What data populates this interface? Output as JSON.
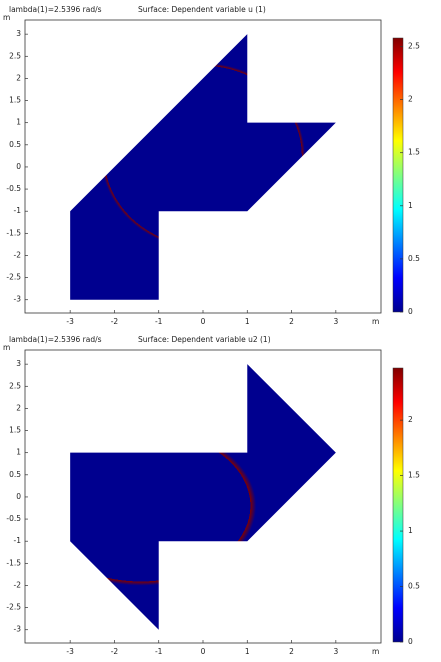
{
  "chart_data": [
    {
      "type": "surface",
      "title": "lambda(1)=2.5396 rad/s",
      "subtitle": "Surface: Dependent variable u (1)",
      "xlabel": "m",
      "ylabel": "m",
      "xlim": [
        -4.02,
        4.02
      ],
      "ylim": [
        -3.3,
        3.32
      ],
      "xticks": [
        -3,
        -2,
        -1,
        0,
        1,
        2,
        3
      ],
      "yticks": [
        -3,
        -2.5,
        -2,
        -1.5,
        -1,
        -0.5,
        0,
        0.5,
        1,
        1.5,
        2,
        2.5,
        3
      ],
      "colormap": "jet",
      "clim": [
        0,
        2.58
      ],
      "cticks": [
        0,
        0.5,
        1,
        1.5,
        2,
        2.5
      ]
    },
    {
      "type": "surface",
      "title": "lambda(1)=2.5396 rad/s",
      "subtitle": "Surface: Dependent variable u2 (1)",
      "xlabel": "m",
      "ylabel": "m",
      "xlim": [
        -4.02,
        4.02
      ],
      "ylim": [
        -3.3,
        3.32
      ],
      "xticks": [
        -3,
        -2,
        -1,
        0,
        1,
        2,
        3
      ],
      "yticks": [
        -3,
        -2.5,
        -2,
        -1.5,
        -1,
        -0.5,
        0,
        0.5,
        1,
        1.5,
        2,
        2.5,
        3
      ],
      "colormap": "jet",
      "clim": [
        0,
        2.47
      ],
      "cticks": [
        0,
        0.5,
        1,
        1.5,
        2
      ]
    }
  ]
}
